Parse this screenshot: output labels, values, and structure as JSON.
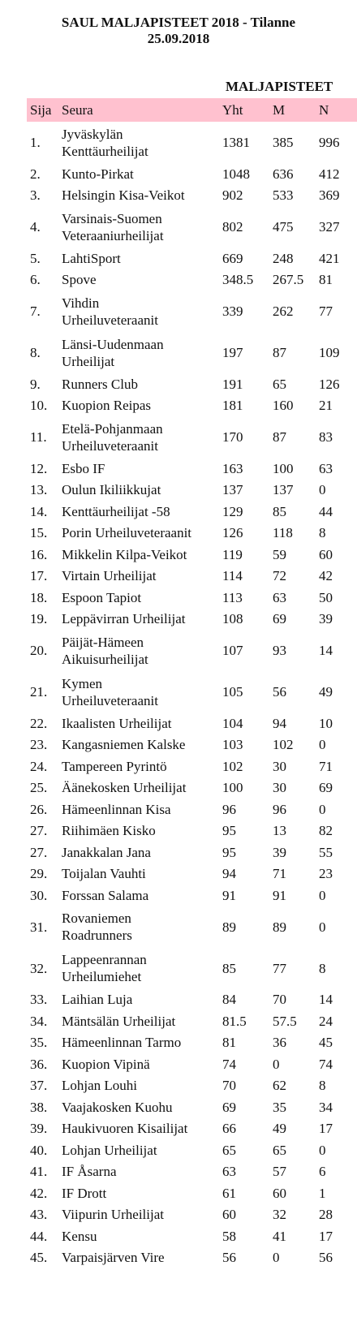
{
  "title": {
    "line1": "SAUL MALJAPISTEET 2018 - Tilanne",
    "line2": "25.09.2018"
  },
  "group_header": "MALJAPISTEET",
  "columns": {
    "sija": "Sija",
    "seura": "Seura",
    "yht": "Yht",
    "m": "M",
    "n": "N"
  },
  "rows": [
    {
      "sija": "1.",
      "seura": [
        "Jyväskylän",
        "Kenttäurheilijat"
      ],
      "yht": "1381",
      "m": "385",
      "n": "996"
    },
    {
      "sija": "2.",
      "seura": [
        "Kunto-Pirkat"
      ],
      "yht": "1048",
      "m": "636",
      "n": "412"
    },
    {
      "sija": "3.",
      "seura": [
        "Helsingin Kisa-Veikot"
      ],
      "yht": "902",
      "m": "533",
      "n": "369"
    },
    {
      "sija": "4.",
      "seura": [
        "Varsinais-Suomen",
        "Veteraaniurheilijat"
      ],
      "yht": "802",
      "m": "475",
      "n": "327"
    },
    {
      "sija": "5.",
      "seura": [
        "LahtiSport"
      ],
      "yht": "669",
      "m": "248",
      "n": "421"
    },
    {
      "sija": "6.",
      "seura": [
        "Spove"
      ],
      "yht": "348.5",
      "m": "267.5",
      "n": "81"
    },
    {
      "sija": "7.",
      "seura": [
        "Vihdin",
        "Urheiluveteraanit"
      ],
      "yht": "339",
      "m": "262",
      "n": "77"
    },
    {
      "sija": "8.",
      "seura": [
        "Länsi-Uudenmaan",
        "Urheilijat"
      ],
      "yht": "197",
      "m": "87",
      "n": "109"
    },
    {
      "sija": "9.",
      "seura": [
        "Runners Club"
      ],
      "yht": "191",
      "m": "65",
      "n": "126"
    },
    {
      "sija": "10.",
      "seura": [
        "Kuopion Reipas"
      ],
      "yht": "181",
      "m": "160",
      "n": "21"
    },
    {
      "sija": "11.",
      "seura": [
        "Etelä-Pohjanmaan",
        "Urheiluveteraanit"
      ],
      "yht": "170",
      "m": "87",
      "n": "83"
    },
    {
      "sija": "12.",
      "seura": [
        "Esbo IF"
      ],
      "yht": "163",
      "m": "100",
      "n": "63"
    },
    {
      "sija": "13.",
      "seura": [
        "Oulun Ikiliikkujat"
      ],
      "yht": "137",
      "m": "137",
      "n": "0"
    },
    {
      "sija": "14.",
      "seura": [
        "Kenttäurheilijat -58"
      ],
      "yht": "129",
      "m": "85",
      "n": "44"
    },
    {
      "sija": "15.",
      "seura": [
        "Porin Urheiluveteraanit"
      ],
      "yht": "126",
      "m": "118",
      "n": "8"
    },
    {
      "sija": "16.",
      "seura": [
        "Mikkelin Kilpa-Veikot"
      ],
      "yht": "119",
      "m": "59",
      "n": "60"
    },
    {
      "sija": "17.",
      "seura": [
        "Virtain Urheilijat"
      ],
      "yht": "114",
      "m": "72",
      "n": "42"
    },
    {
      "sija": "18.",
      "seura": [
        "Espoon Tapiot"
      ],
      "yht": "113",
      "m": "63",
      "n": "50"
    },
    {
      "sija": "19.",
      "seura": [
        "Leppävirran Urheilijat"
      ],
      "yht": "108",
      "m": "69",
      "n": "39"
    },
    {
      "sija": "20.",
      "seura": [
        "Päijät-Hämeen",
        "Aikuisurheilijat"
      ],
      "yht": "107",
      "m": "93",
      "n": "14"
    },
    {
      "sija": "21.",
      "seura": [
        "Kymen",
        "Urheiluveteraanit"
      ],
      "yht": "105",
      "m": "56",
      "n": "49"
    },
    {
      "sija": "22.",
      "seura": [
        "Ikaalisten Urheilijat"
      ],
      "yht": "104",
      "m": "94",
      "n": "10"
    },
    {
      "sija": "23.",
      "seura": [
        "Kangasniemen Kalske"
      ],
      "yht": "103",
      "m": "102",
      "n": "0"
    },
    {
      "sija": "24.",
      "seura": [
        "Tampereen Pyrintö"
      ],
      "yht": "102",
      "m": "30",
      "n": "71"
    },
    {
      "sija": "25.",
      "seura": [
        "Äänekosken Urheilijat"
      ],
      "yht": "100",
      "m": "30",
      "n": "69"
    },
    {
      "sija": "26.",
      "seura": [
        "Hämeenlinnan Kisa"
      ],
      "yht": "96",
      "m": "96",
      "n": "0"
    },
    {
      "sija": "27.",
      "seura": [
        "Riihimäen Kisko"
      ],
      "yht": "95",
      "m": "13",
      "n": "82"
    },
    {
      "sija": "27.",
      "seura": [
        "Janakkalan Jana"
      ],
      "yht": "95",
      "m": "39",
      "n": "55"
    },
    {
      "sija": "29.",
      "seura": [
        "Toijalan Vauhti"
      ],
      "yht": "94",
      "m": "71",
      "n": "23"
    },
    {
      "sija": "30.",
      "seura": [
        "Forssan Salama"
      ],
      "yht": "91",
      "m": "91",
      "n": "0"
    },
    {
      "sija": "31.",
      "seura": [
        "Rovaniemen",
        "Roadrunners"
      ],
      "yht": "89",
      "m": "89",
      "n": "0"
    },
    {
      "sija": "32.",
      "seura": [
        "Lappeenrannan",
        "Urheilumiehet"
      ],
      "yht": "85",
      "m": "77",
      "n": "8"
    },
    {
      "sija": "33.",
      "seura": [
        "Laihian Luja"
      ],
      "yht": "84",
      "m": "70",
      "n": "14"
    },
    {
      "sija": "34.",
      "seura": [
        "Mäntsälän Urheilijat"
      ],
      "yht": "81.5",
      "m": "57.5",
      "n": "24"
    },
    {
      "sija": "35.",
      "seura": [
        "Hämeenlinnan Tarmo"
      ],
      "yht": "81",
      "m": "36",
      "n": "45"
    },
    {
      "sija": "36.",
      "seura": [
        "Kuopion Vipinä"
      ],
      "yht": "74",
      "m": "0",
      "n": "74"
    },
    {
      "sija": "37.",
      "seura": [
        "Lohjan Louhi"
      ],
      "yht": "70",
      "m": "62",
      "n": "8"
    },
    {
      "sija": "38.",
      "seura": [
        "Vaajakosken Kuohu"
      ],
      "yht": "69",
      "m": "35",
      "n": "34"
    },
    {
      "sija": "39.",
      "seura": [
        "Haukivuoren Kisailijat"
      ],
      "yht": "66",
      "m": "49",
      "n": "17"
    },
    {
      "sija": "40.",
      "seura": [
        "Lohjan Urheilijat"
      ],
      "yht": "65",
      "m": "65",
      "n": "0"
    },
    {
      "sija": "41.",
      "seura": [
        "IF Åsarna"
      ],
      "yht": "63",
      "m": "57",
      "n": "6"
    },
    {
      "sija": "42.",
      "seura": [
        "IF Drott"
      ],
      "yht": "61",
      "m": "60",
      "n": "1"
    },
    {
      "sija": "43.",
      "seura": [
        "Viipurin Urheilijat"
      ],
      "yht": "60",
      "m": "32",
      "n": "28"
    },
    {
      "sija": "44.",
      "seura": [
        "Kensu"
      ],
      "yht": "58",
      "m": "41",
      "n": "17"
    },
    {
      "sija": "45.",
      "seura": [
        "Varpaisjärven Vire"
      ],
      "yht": "56",
      "m": "0",
      "n": "56"
    }
  ]
}
